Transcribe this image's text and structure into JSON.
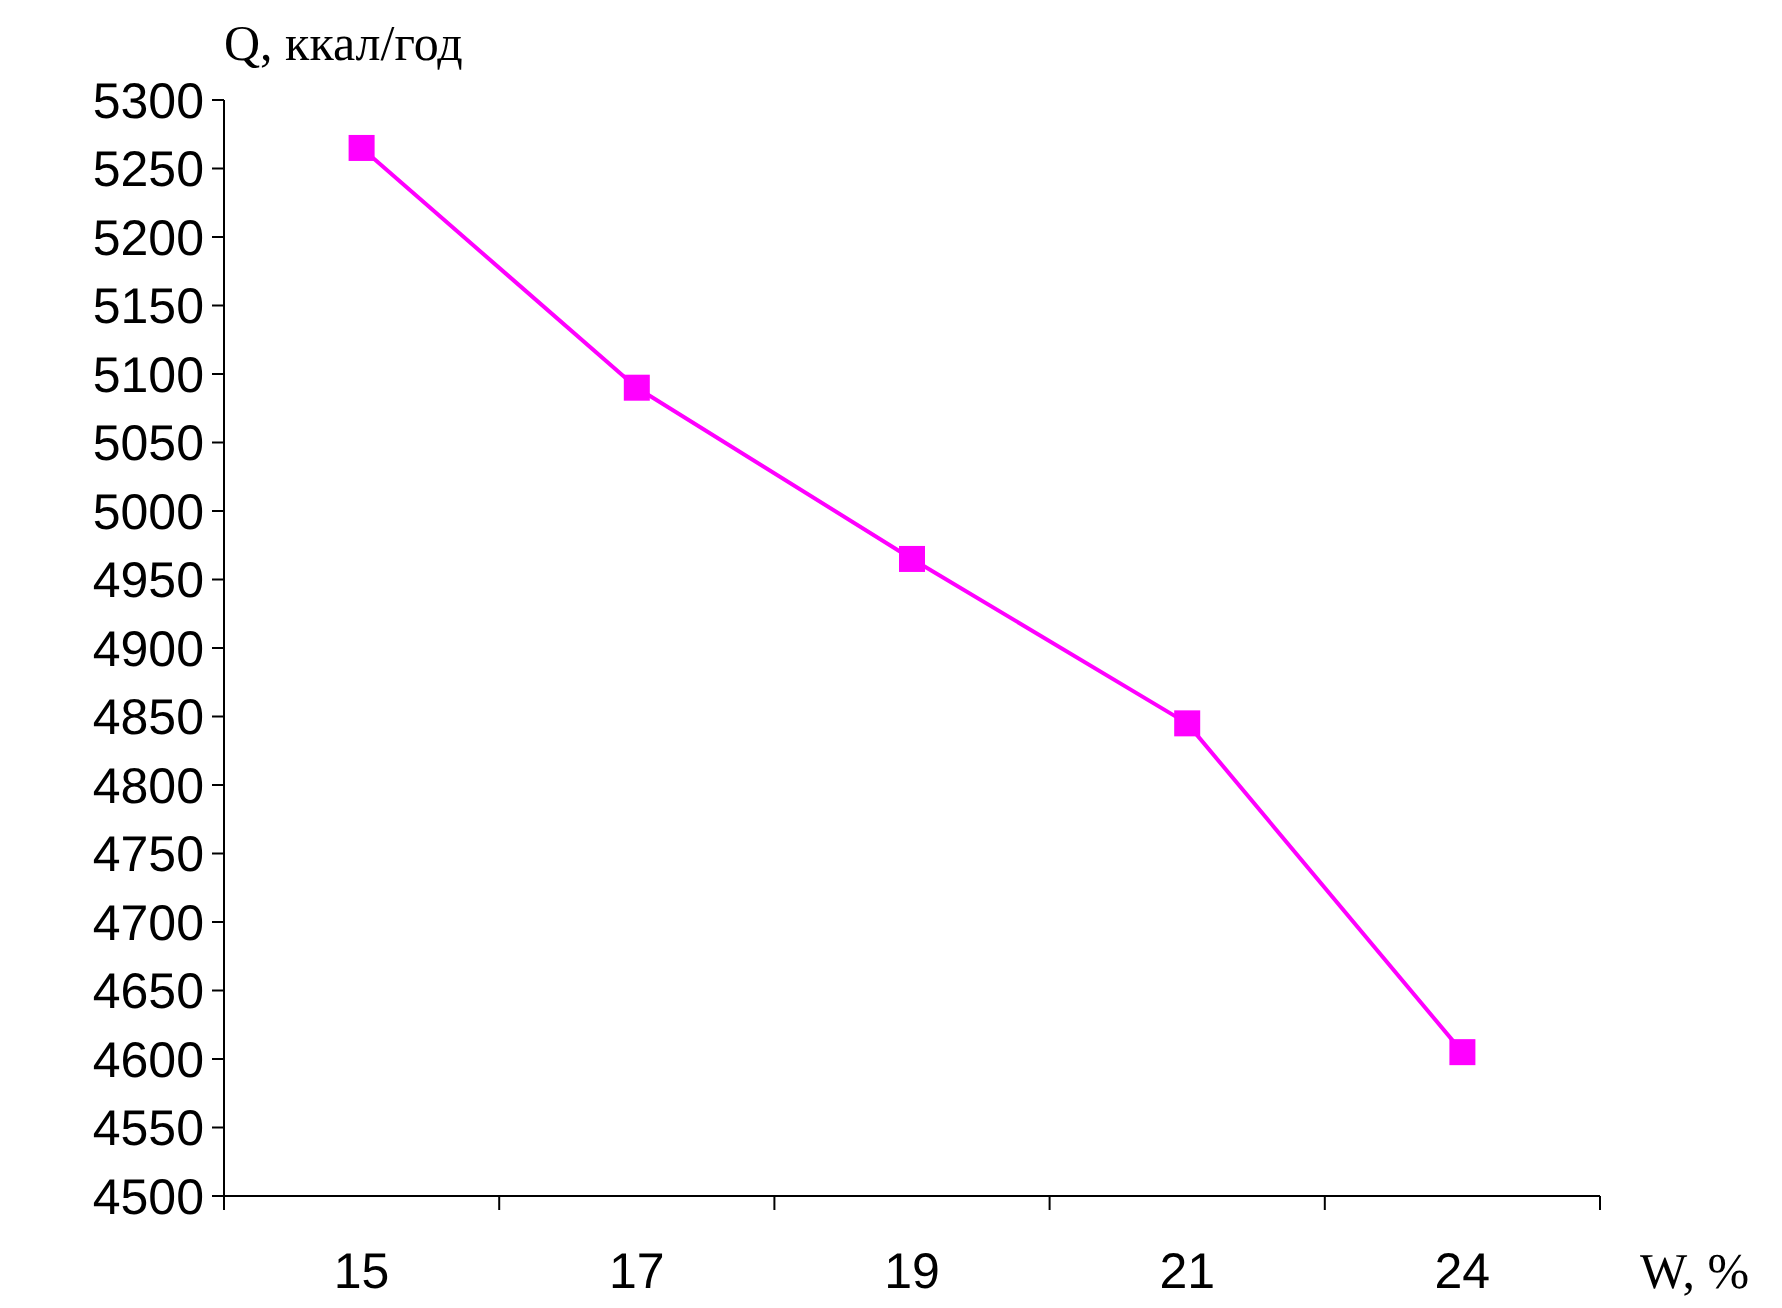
{
  "chart_data": {
    "type": "line",
    "xlabel": "W, %",
    "ylabel": "Q, ккал/год",
    "categories": [
      "15",
      "17",
      "19",
      "21",
      "24"
    ],
    "series": [
      {
        "color": "#ff00ff",
        "values": [
          5265,
          5090,
          4965,
          4845,
          4605
        ]
      }
    ],
    "ylim": [
      4500,
      5300
    ],
    "yticks": [
      4500,
      4550,
      4600,
      4650,
      4700,
      4750,
      4800,
      4850,
      4900,
      4950,
      5000,
      5050,
      5100,
      5150,
      5200,
      5250,
      5300
    ],
    "grid": false,
    "marker": "square",
    "line_style": "solid"
  }
}
